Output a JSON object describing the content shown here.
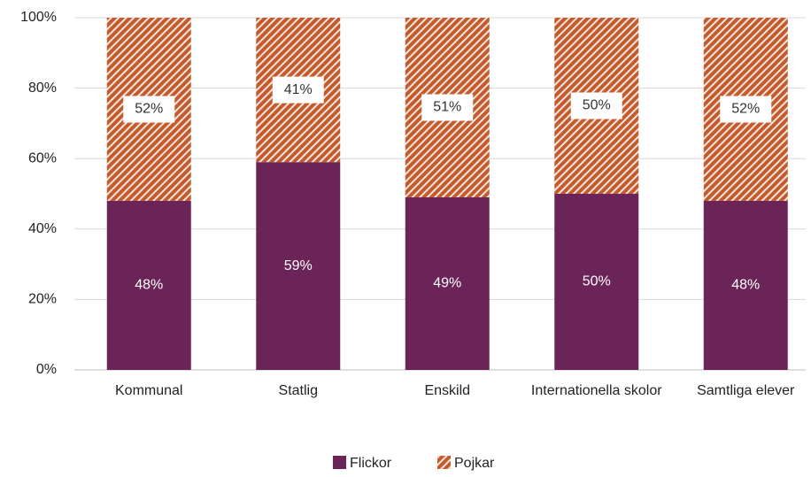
{
  "chart_data": {
    "type": "stacked_bar",
    "categories": [
      "Kommunal",
      "Statlig",
      "Enskild",
      "Internationella skolor",
      "Samtliga elever"
    ],
    "series": [
      {
        "name": "Flickor",
        "color": "#6b2458",
        "values": [
          48,
          59,
          49,
          50,
          48
        ],
        "value_labels": [
          "48%",
          "59%",
          "49%",
          "50%",
          "48%"
        ]
      },
      {
        "name": "Pojkar",
        "color": "#c55a2c",
        "pattern": "diagonal-hatch",
        "values": [
          52,
          41,
          51,
          50,
          52
        ],
        "value_labels": [
          "52%",
          "41%",
          "51%",
          "50%",
          "52%"
        ]
      }
    ],
    "ylim": [
      0,
      100
    ],
    "yticks": [
      {
        "value": 0,
        "label": "0%"
      },
      {
        "value": 20,
        "label": "20%"
      },
      {
        "value": 40,
        "label": "40%"
      },
      {
        "value": 60,
        "label": "60%"
      },
      {
        "value": 80,
        "label": "80%"
      },
      {
        "value": 100,
        "label": "100%"
      }
    ],
    "grid": true,
    "legend": "bottom"
  }
}
